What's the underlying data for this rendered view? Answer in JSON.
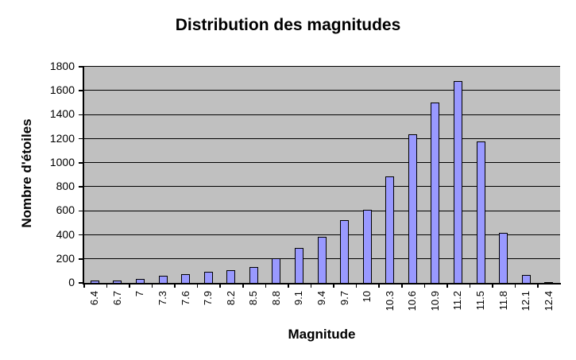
{
  "chart_data": {
    "type": "bar",
    "title": "Distribution des magnitudes",
    "xlabel": "Magnitude",
    "ylabel": "Nombre d'étoiles",
    "ylim": [
      0,
      1800
    ],
    "yticks": [
      0,
      200,
      400,
      600,
      800,
      1000,
      1200,
      1400,
      1600,
      1800
    ],
    "grid": true,
    "legend": "none",
    "bar_color": "#9999ff",
    "plot_background": "#c0c0c0",
    "categories": [
      "6.4",
      "6.7",
      "7",
      "7.3",
      "7.6",
      "7.9",
      "8.2",
      "8.5",
      "8.8",
      "9.1",
      "9.4",
      "9.7",
      "10",
      "10.3",
      "10.6",
      "10.9",
      "11.2",
      "11.5",
      "11.8",
      "12.1",
      "12.4"
    ],
    "values": [
      20,
      20,
      35,
      60,
      75,
      95,
      105,
      130,
      205,
      290,
      385,
      525,
      610,
      885,
      1235,
      1500,
      1680,
      1180,
      415,
      65,
      5
    ]
  }
}
